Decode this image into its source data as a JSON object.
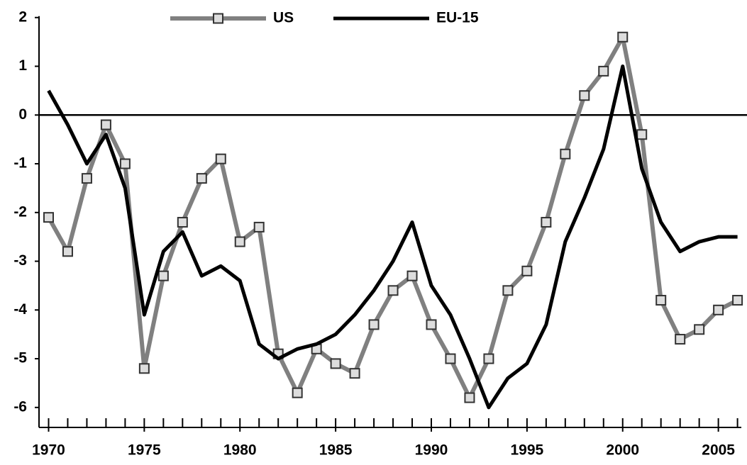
{
  "chart_data": {
    "type": "line",
    "x": [
      1970,
      1971,
      1972,
      1973,
      1974,
      1975,
      1976,
      1977,
      1978,
      1979,
      1980,
      1981,
      1982,
      1983,
      1984,
      1985,
      1986,
      1987,
      1988,
      1989,
      1990,
      1991,
      1992,
      1993,
      1994,
      1995,
      1996,
      1997,
      1998,
      1999,
      2000,
      2001,
      2002,
      2003,
      2004,
      2005,
      2006
    ],
    "series": [
      {
        "name": "US",
        "color": "#808080",
        "marker": "square",
        "values": [
          -2.1,
          -2.8,
          -1.3,
          -0.2,
          -1.0,
          -5.2,
          -3.3,
          -2.2,
          -1.3,
          -0.9,
          -2.6,
          -2.3,
          -4.9,
          -5.7,
          -4.8,
          -5.1,
          -5.3,
          -4.3,
          -3.6,
          -3.3,
          -4.3,
          -5.0,
          -5.8,
          -5.0,
          -3.6,
          -3.2,
          -2.2,
          -0.8,
          0.4,
          0.9,
          1.6,
          -0.4,
          -3.8,
          -4.6,
          -4.4,
          -4.0,
          -3.8
        ]
      },
      {
        "name": "EU-15",
        "color": "#000000",
        "values": [
          0.5,
          -0.2,
          -1.0,
          -0.4,
          -1.5,
          -4.1,
          -2.8,
          -2.4,
          -3.3,
          -3.1,
          -3.4,
          -4.7,
          -5.0,
          -4.8,
          -4.7,
          -4.5,
          -4.1,
          -3.6,
          -3.0,
          -2.2,
          -3.5,
          -4.1,
          -5.0,
          -6.0,
          -5.4,
          -5.1,
          -4.3,
          -2.6,
          -1.7,
          -0.7,
          1.0,
          -1.1,
          -2.2,
          -2.8,
          -2.6,
          -2.5,
          -2.5
        ]
      }
    ],
    "xlim": [
      1969.5,
      2006.2
    ],
    "xticks": [
      1970,
      1975,
      1980,
      1985,
      1990,
      1995,
      2000,
      2005
    ],
    "ylim": [
      -6.41,
      2.2
    ],
    "yticks": [
      2,
      1,
      0,
      -1,
      -2,
      -3,
      -4,
      -5,
      -6
    ],
    "legend": "top"
  }
}
